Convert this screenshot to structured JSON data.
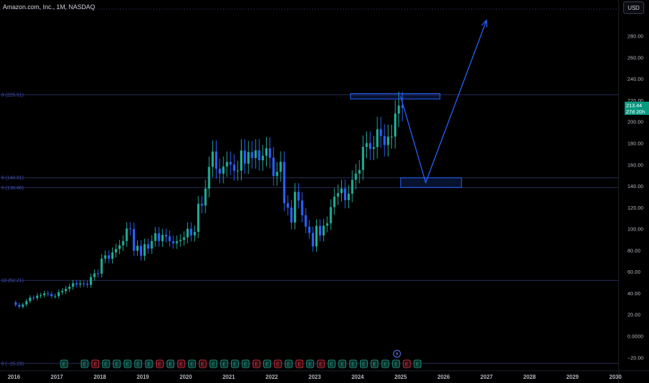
{
  "title": "Amazon.com, Inc., 1M, NASDAQ",
  "currency": "USD",
  "last_price": "213.44",
  "countdown": "27d 20h",
  "colors": {
    "up": "#22ab94",
    "down": "#2962ff",
    "fib_line": "#2a2e5c",
    "drawing": "#2962ff",
    "axis_text": "#b2b5be"
  },
  "fib_levels": [
    {
      "price": 225.51,
      "label": "8 (225.51)"
    },
    {
      "price": 148.01,
      "label": "8 (148.01)"
    },
    {
      "price": 138.86,
      "label": "5 (138.86)"
    },
    {
      "price": 52.21,
      "label": "18 (52.21)"
    },
    {
      "price": -25.29,
      "label": "8 (−25.29)"
    }
  ],
  "events": {
    "badges": [
      "E",
      "E",
      "E",
      "E",
      "E",
      "E",
      "E",
      "E",
      "E",
      "E",
      "E",
      "E",
      "E",
      "E",
      "E",
      "E",
      "E",
      "E",
      "E",
      "E",
      "E",
      "E",
      "E",
      "E",
      "E",
      "E",
      "E",
      "E",
      "E",
      "E",
      "E",
      "E",
      "E"
    ],
    "badge_types": [
      "earnings",
      "earnings",
      "earnings-neg",
      "earnings",
      "earnings",
      "earnings",
      "earnings",
      "earnings",
      "earnings-neg",
      "earnings",
      "earnings-neg",
      "earnings",
      "earnings-neg",
      "earnings",
      "earnings",
      "earnings",
      "earnings",
      "earnings-neg",
      "earnings",
      "earnings-neg",
      "earnings",
      "earnings-neg",
      "earnings",
      "earnings-neg",
      "earnings",
      "earnings",
      "earnings",
      "earnings",
      "earnings",
      "earnings",
      "earnings",
      "earnings-neg",
      "earnings"
    ],
    "upcoming_icon": "lightning-icon"
  },
  "chart_data": {
    "type": "candlestick",
    "symbol": "Amazon.com, Inc.",
    "interval": "1M",
    "exchange": "NASDAQ",
    "start": "2016-01",
    "x_ticks": [
      "2016",
      "2017",
      "2018",
      "2019",
      "2020",
      "2021",
      "2022",
      "2023",
      "2024",
      "2025",
      "2026",
      "2027",
      "2028",
      "2029",
      "2030"
    ],
    "y_ticks": [
      "−20.00",
      "0.0000",
      "20.00",
      "40.00",
      "60.00",
      "80.00",
      "100.00",
      "120.00",
      "140.00",
      "160.00",
      "180.00",
      "200.00",
      "220.00",
      "240.00",
      "260.00",
      "280.00"
    ],
    "ylim": [
      -25,
      300
    ],
    "closes": [
      29.4,
      27.6,
      29.7,
      32.9,
      36.1,
      35.8,
      37.9,
      38.4,
      40.1,
      39.5,
      37.5,
      37.5,
      41.2,
      42.3,
      44.3,
      46.3,
      49.7,
      48.4,
      49.4,
      49.0,
      48.1,
      55.3,
      58.8,
      58.5,
      72.5,
      75.6,
      72.4,
      78.3,
      81.5,
      84.9,
      88.9,
      100.6,
      100.1,
      79.9,
      84.5,
      75.1,
      86.0,
      81.9,
      89.0,
      96.3,
      88.8,
      94.7,
      93.3,
      88.8,
      86.8,
      88.8,
      90.0,
      92.4,
      100.4,
      94.2,
      97.5,
      123.7,
      122.1,
      137.9,
      158.2,
      172.5,
      156.4,
      151.8,
      158.4,
      162.8,
      160.3,
      154.6,
      154.7,
      173.4,
      161.2,
      172.0,
      166.4,
      173.6,
      164.3,
      168.6,
      175.4,
      166.7,
      149.6,
      153.6,
      162.9,
      124.3,
      120.2,
      106.2,
      134.9,
      126.8,
      113.0,
      102.4,
      96.5,
      84.0,
      103.1,
      94.2,
      103.3,
      105.5,
      120.6,
      130.4,
      133.7,
      138.0,
      127.1,
      133.1,
      146.1,
      151.9,
      155.2,
      176.8,
      180.4,
      175.0,
      176.6,
      193.3,
      186.9,
      178.5,
      186.3,
      186.4,
      207.9,
      215.4,
      213.4
    ],
    "opens": [
      31.6,
      29.4,
      27.6,
      29.7,
      32.9,
      36.1,
      35.8,
      37.9,
      38.4,
      40.1,
      39.5,
      37.5,
      37.5,
      41.2,
      42.3,
      44.3,
      46.3,
      49.7,
      48.4,
      49.4,
      49.0,
      48.1,
      55.3,
      58.8,
      58.5,
      72.5,
      75.6,
      72.4,
      78.3,
      81.5,
      84.9,
      88.9,
      100.6,
      100.1,
      79.9,
      84.5,
      75.1,
      86.0,
      81.9,
      89.0,
      96.3,
      88.8,
      94.7,
      93.3,
      88.8,
      86.8,
      88.8,
      90.0,
      92.4,
      100.4,
      94.2,
      97.5,
      123.7,
      122.1,
      137.9,
      158.2,
      172.5,
      156.4,
      151.8,
      158.4,
      162.8,
      160.3,
      154.6,
      154.7,
      173.4,
      161.2,
      172.0,
      166.4,
      173.6,
      164.3,
      168.6,
      175.4,
      166.7,
      149.6,
      153.6,
      162.9,
      124.3,
      120.2,
      106.2,
      134.9,
      126.8,
      113.0,
      102.4,
      96.5,
      84.0,
      103.1,
      94.2,
      103.3,
      105.5,
      120.6,
      130.4,
      133.7,
      138.0,
      127.1,
      133.1,
      146.1,
      151.9,
      155.2,
      176.8,
      180.4,
      175.0,
      176.6,
      193.3,
      186.9,
      178.5,
      186.3,
      186.4,
      207.9,
      215.4
    ],
    "range_box_top": {
      "from": "2023-11",
      "to": "2025-12",
      "high": 226.5,
      "low": 221.5
    },
    "range_box_bottom": {
      "from": "2025-01",
      "to": "2026-06",
      "high": 148.0,
      "low": 138.9
    },
    "projection_path": [
      {
        "date": "2025-01",
        "price": 224.0
      },
      {
        "date": "2025-08",
        "price": 143.5
      },
      {
        "date": "2027-01",
        "price": 295.0
      }
    ]
  }
}
